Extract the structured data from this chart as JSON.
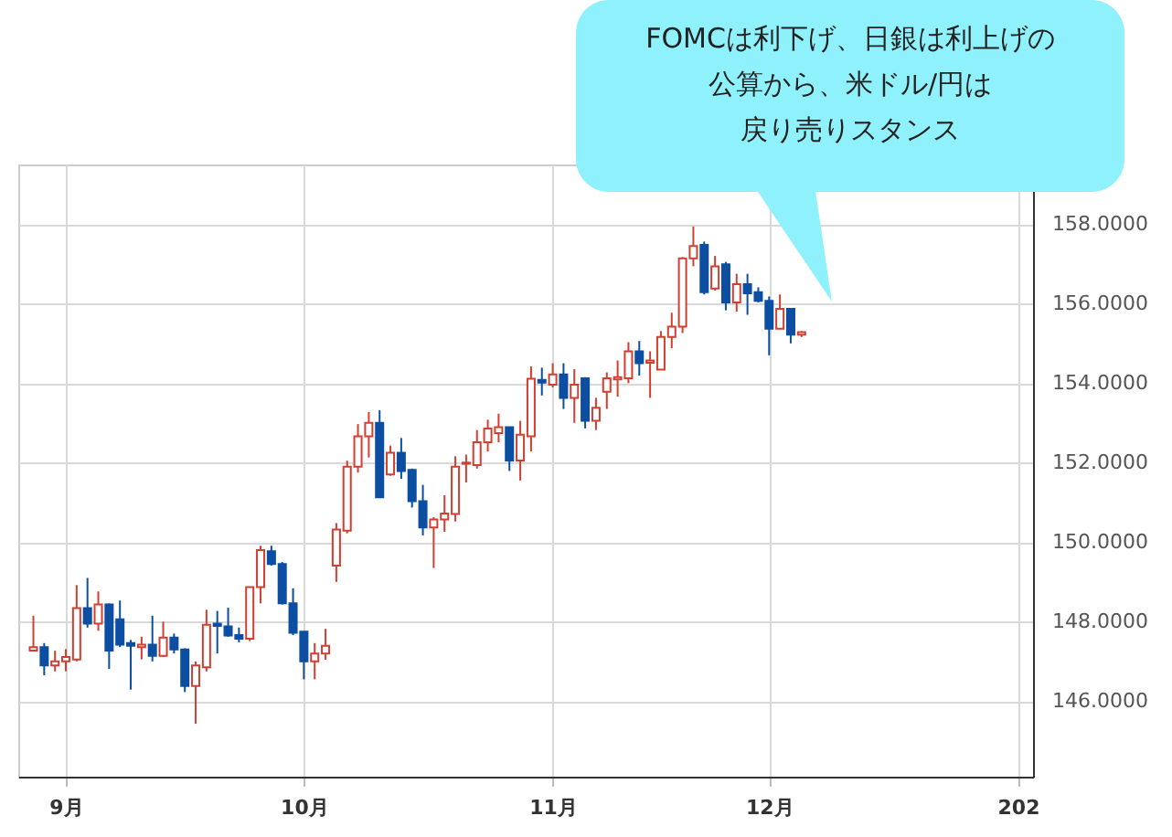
{
  "chart_data": {
    "type": "candlestick",
    "annotations": [
      "FOMCは利下げ、日銀は利上げの",
      "公算から、米ドル/円は",
      "戻り売りスタンス"
    ],
    "categories": [
      null,
      null,
      null,
      "9月",
      null,
      null,
      null,
      null,
      null,
      null,
      null,
      null,
      null,
      null,
      null,
      null,
      null,
      null,
      null,
      null,
      null,
      null,
      null,
      null,
      null,
      "10月",
      null,
      null,
      null,
      null,
      null,
      null,
      null,
      null,
      null,
      null,
      null,
      null,
      null,
      null,
      null,
      null,
      null,
      null,
      null,
      null,
      null,
      null,
      "11月",
      null,
      null,
      null,
      null,
      null,
      null,
      null,
      null,
      null,
      null,
      null,
      null,
      null,
      null,
      null,
      null,
      null,
      null,
      null,
      "12月",
      null,
      null,
      null,
      null,
      null,
      null,
      null,
      null,
      null,
      null,
      null,
      null,
      null,
      null,
      null,
      null,
      null,
      null,
      null,
      null,
      null,
      null,
      "202"
    ],
    "ohlc": [
      [
        147.27,
        148.15,
        147.27,
        147.36
      ],
      [
        147.36,
        147.46,
        146.65,
        146.9
      ],
      [
        146.9,
        147.27,
        146.75,
        147.0
      ],
      [
        147.0,
        147.31,
        146.75,
        147.11
      ],
      [
        147.05,
        148.92,
        147.0,
        148.34
      ],
      [
        148.34,
        149.1,
        147.85,
        147.95
      ],
      [
        147.95,
        148.76,
        147.77,
        148.43
      ],
      [
        148.43,
        148.46,
        146.81,
        147.27
      ],
      [
        148.06,
        148.53,
        147.36,
        147.42
      ],
      [
        147.46,
        147.54,
        146.29,
        147.39
      ],
      [
        147.36,
        147.62,
        147.05,
        147.42
      ],
      [
        147.42,
        148.15,
        147.0,
        147.14
      ],
      [
        147.14,
        148.0,
        147.11,
        147.6
      ],
      [
        147.6,
        147.7,
        147.2,
        147.3
      ],
      [
        147.3,
        147.33,
        146.23,
        146.38
      ],
      [
        146.38,
        147.0,
        145.43,
        146.9
      ],
      [
        146.85,
        148.3,
        146.75,
        147.92
      ],
      [
        147.95,
        148.27,
        147.2,
        147.89
      ],
      [
        147.88,
        148.35,
        147.62,
        147.65
      ],
      [
        147.66,
        147.85,
        147.48,
        147.57
      ],
      [
        147.57,
        148.87,
        147.51,
        148.87
      ],
      [
        148.87,
        149.91,
        148.46,
        149.8
      ],
      [
        149.77,
        149.91,
        149.41,
        149.45
      ],
      [
        149.45,
        149.5,
        148.43,
        148.46
      ],
      [
        148.46,
        148.84,
        147.66,
        147.72
      ],
      [
        147.75,
        147.75,
        146.55,
        147.0
      ],
      [
        147.0,
        147.46,
        146.55,
        147.2
      ],
      [
        147.2,
        147.82,
        147.04,
        147.39
      ],
      [
        149.41,
        150.48,
        149.0,
        150.32
      ],
      [
        150.29,
        152.05,
        150.22,
        151.9
      ],
      [
        151.9,
        152.97,
        151.75,
        152.66
      ],
      [
        152.66,
        153.27,
        152.13,
        153.0
      ],
      [
        153.0,
        153.32,
        151.13,
        151.13
      ],
      [
        151.7,
        152.43,
        151.67,
        152.25
      ],
      [
        152.25,
        152.62,
        151.59,
        151.79
      ],
      [
        151.82,
        151.85,
        150.87,
        151.03
      ],
      [
        151.03,
        151.44,
        150.17,
        150.37
      ],
      [
        150.37,
        150.63,
        149.35,
        150.57
      ],
      [
        150.57,
        151.18,
        150.26,
        150.72
      ],
      [
        150.71,
        152.16,
        150.52,
        151.9
      ],
      [
        151.97,
        152.2,
        151.5,
        152.0
      ],
      [
        151.94,
        152.82,
        151.85,
        152.51
      ],
      [
        152.51,
        153.08,
        152.28,
        152.86
      ],
      [
        152.74,
        153.23,
        152.51,
        152.89
      ],
      [
        152.89,
        152.89,
        151.79,
        152.05
      ],
      [
        152.05,
        153.05,
        151.55,
        152.7
      ],
      [
        152.66,
        154.42,
        152.28,
        154.11
      ],
      [
        154.08,
        154.39,
        153.69,
        154.01
      ],
      [
        153.96,
        154.5,
        153.89,
        154.22
      ],
      [
        154.22,
        154.5,
        153.35,
        153.63
      ],
      [
        153.63,
        154.35,
        153.0,
        153.96
      ],
      [
        154.12,
        154.15,
        152.86,
        153.05
      ],
      [
        153.05,
        153.63,
        152.82,
        153.38
      ],
      [
        153.78,
        154.27,
        153.35,
        154.12
      ],
      [
        154.09,
        154.57,
        153.66,
        154.15
      ],
      [
        154.12,
        155.03,
        154.0,
        154.8
      ],
      [
        154.8,
        155.06,
        154.19,
        154.5
      ],
      [
        154.51,
        154.8,
        153.63,
        154.57
      ],
      [
        154.34,
        155.31,
        154.34,
        155.16
      ],
      [
        155.16,
        155.77,
        154.88,
        155.42
      ],
      [
        155.42,
        157.17,
        155.26,
        157.14
      ],
      [
        157.14,
        157.94,
        156.94,
        157.45
      ],
      [
        157.48,
        157.56,
        156.23,
        156.29
      ],
      [
        156.38,
        157.2,
        156.33,
        156.94
      ],
      [
        156.99,
        157.05,
        155.83,
        156.03
      ],
      [
        156.03,
        156.75,
        155.8,
        156.49
      ],
      [
        156.49,
        156.75,
        155.72,
        156.26
      ],
      [
        156.29,
        156.41,
        156.03,
        156.07
      ],
      [
        156.07,
        156.18,
        154.7,
        155.37
      ],
      [
        155.37,
        156.23,
        155.37,
        155.87
      ],
      [
        155.87,
        155.87,
        155.0,
        155.22
      ],
      [
        155.22,
        155.31,
        155.16,
        155.28
      ],
      null,
      null,
      null,
      null,
      null,
      null,
      null,
      null,
      null,
      null,
      null,
      null,
      null,
      null,
      null,
      null,
      null,
      null,
      null,
      null
    ],
    "colors": [
      "#d23f31",
      "#0b4ea2",
      "#d23f31",
      "#d23f31",
      "#d23f31",
      "#0b4ea2",
      "#d23f31",
      "#0b4ea2",
      "#0b4ea2",
      "#0b4ea2",
      "#d23f31",
      "#0b4ea2",
      "#d23f31",
      "#0b4ea2",
      "#0b4ea2",
      "#d23f31",
      "#d23f31",
      "#0b4ea2",
      "#0b4ea2",
      "#0b4ea2",
      "#d23f31",
      "#d23f31",
      "#0b4ea2",
      "#0b4ea2",
      "#0b4ea2",
      "#0b4ea2",
      "#d23f31",
      "#d23f31",
      "#d23f31",
      "#d23f31",
      "#d23f31",
      "#d23f31",
      "#0b4ea2",
      "#d23f31",
      "#0b4ea2",
      "#0b4ea2",
      "#0b4ea2",
      "#d23f31",
      "#d23f31",
      "#d23f31",
      "#d23f31",
      "#d23f31",
      "#d23f31",
      "#d23f31",
      "#0b4ea2",
      "#d23f31",
      "#d23f31",
      "#0b4ea2",
      "#d23f31",
      "#0b4ea2",
      "#d23f31",
      "#0b4ea2",
      "#d23f31",
      "#d23f31",
      "#d23f31",
      "#d23f31",
      "#0b4ea2",
      "#d23f31",
      "#d23f31",
      "#d23f31",
      "#d23f31",
      "#d23f31",
      "#0b4ea2",
      "#d23f31",
      "#0b4ea2",
      "#d23f31",
      "#0b4ea2",
      "#0b4ea2",
      "#0b4ea2",
      "#d23f31",
      "#0b4ea2",
      "#d23f31",
      null,
      null,
      null,
      null,
      null,
      null,
      null,
      null,
      null,
      null,
      null,
      null,
      null,
      null,
      null,
      null,
      null,
      null,
      null,
      null
    ],
    "ylim": [
      144.1,
      159.5
    ],
    "yticks": [
      {
        "value": 146,
        "label": "146.0000"
      },
      {
        "value": 148,
        "label": "148.0000"
      },
      {
        "value": 150,
        "label": "150.0000"
      },
      {
        "value": 152,
        "label": "152.0000"
      },
      {
        "value": 154,
        "label": "154.0000"
      },
      {
        "value": 156,
        "label": "156.0000"
      },
      {
        "value": 158,
        "label": "158.0000"
      }
    ],
    "grid": true
  }
}
